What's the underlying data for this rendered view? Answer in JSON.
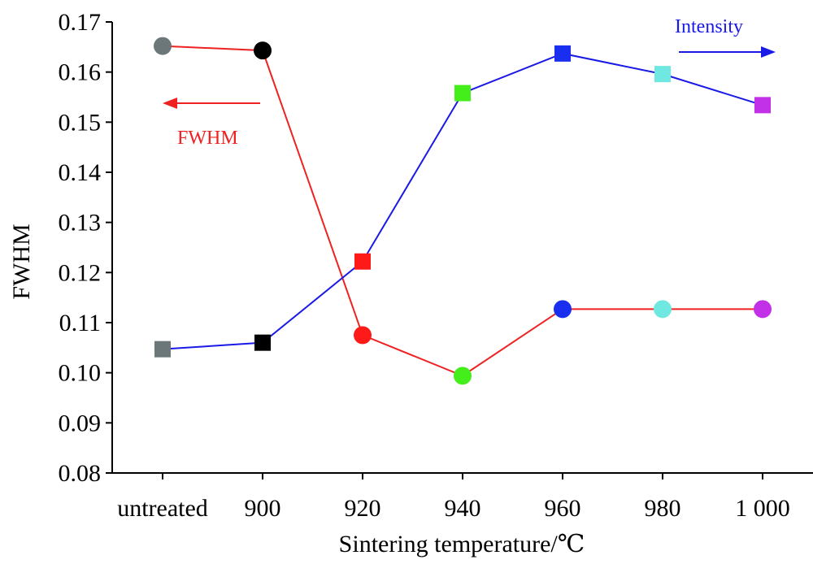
{
  "chart_data": {
    "type": "line",
    "xlabel": "Sintering temperature/℃",
    "ylabel": "FWHM",
    "ylim": [
      0.08,
      0.17
    ],
    "yticks": [
      "0.08",
      "0.09",
      "0.10",
      "0.11",
      "0.12",
      "0.13",
      "0.14",
      "0.15",
      "0.16",
      "0.17"
    ],
    "categories": [
      "untreated",
      "900",
      "920",
      "940",
      "960",
      "980",
      "1 000"
    ],
    "grid": false,
    "point_colors": [
      "#6b7778",
      "#000000",
      "#ff1a1a",
      "#44ee1a",
      "#1a2ef0",
      "#6ee8e0",
      "#c230e8"
    ],
    "series": [
      {
        "name": "FWHM",
        "axis": "left",
        "marker": "circle",
        "line_color": "#ee2222",
        "values": [
          0.1652,
          0.1643,
          0.1075,
          0.0994,
          0.1127,
          0.1127,
          0.1127
        ]
      },
      {
        "name": "Intensity",
        "axis": "right (unlabeled, plotted on the same frame)",
        "marker": "square",
        "line_color": "#1a1ae6",
        "values": [
          0.1047,
          0.106,
          0.1222,
          0.1558,
          0.1637,
          0.1596,
          0.1534
        ]
      }
    ],
    "annotations": [
      {
        "text": "FWHM",
        "color": "#ee2222",
        "arrow": "left"
      },
      {
        "text": "Intensity",
        "color": "#1a1ae6",
        "arrow": "right"
      }
    ]
  }
}
